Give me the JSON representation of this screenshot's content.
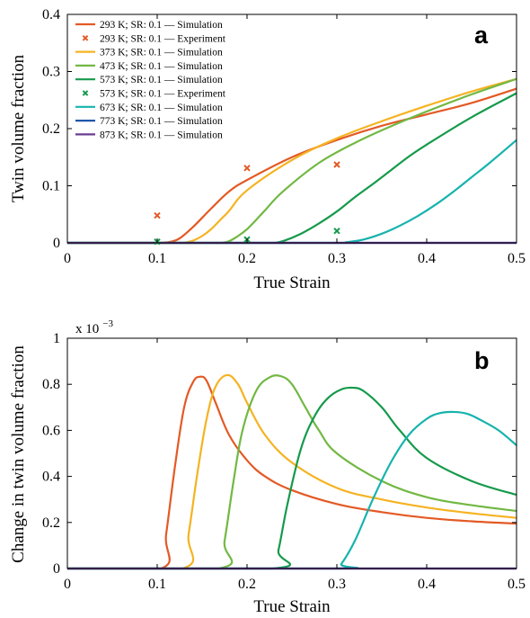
{
  "colors": {
    "293": "#e35a25",
    "373": "#f5b322",
    "473": "#72b843",
    "573": "#159a4b",
    "673": "#16b3ad",
    "773": "#1f57a8",
    "873": "#6a3d93"
  },
  "chart_data": [
    {
      "type": "line",
      "panel_label": "a",
      "xlabel": "True Strain",
      "ylabel": "Twin volume fraction",
      "xlim": [
        0,
        0.5
      ],
      "ylim": [
        0,
        0.4
      ],
      "xticks": [
        "0",
        "0.1",
        "0.2",
        "0.3",
        "0.4",
        "0.5"
      ],
      "yticks": [
        "0",
        "0.1",
        "0.2",
        "0.3",
        "0.4"
      ],
      "legend_position": "top-left",
      "legend": [
        {
          "label": "293 K; SR: 0.1 — Simulation",
          "color_key": "293",
          "marker": "line"
        },
        {
          "label": "293 K; SR: 0.1 — Experiment",
          "color_key": "293",
          "marker": "x"
        },
        {
          "label": "373 K; SR: 0.1 — Simulation",
          "color_key": "373",
          "marker": "line"
        },
        {
          "label": "473 K; SR: 0.1 — Simulation",
          "color_key": "473",
          "marker": "line"
        },
        {
          "label": "573 K; SR: 0.1 — Simulation",
          "color_key": "573",
          "marker": "line"
        },
        {
          "label": "573 K; SR: 0.1 — Experiment",
          "color_key": "573",
          "marker": "x"
        },
        {
          "label": "673 K; SR: 0.1 — Simulation",
          "color_key": "673",
          "marker": "line"
        },
        {
          "label": "773 K; SR: 0.1 — Simulation",
          "color_key": "773",
          "marker": "line"
        },
        {
          "label": "873 K; SR: 0.1 — Simulation",
          "color_key": "873",
          "marker": "line"
        }
      ],
      "series": [
        {
          "name": "293 K; SR: 0.1 — Simulation",
          "color_key": "293",
          "x": [
            0,
            0.1,
            0.105,
            0.115,
            0.125,
            0.14,
            0.16,
            0.18,
            0.2,
            0.25,
            0.3,
            0.35,
            0.4,
            0.45,
            0.5
          ],
          "y": [
            0,
            0,
            0,
            0.002,
            0.008,
            0.028,
            0.06,
            0.09,
            0.11,
            0.15,
            0.18,
            0.205,
            0.225,
            0.245,
            0.27
          ]
        },
        {
          "name": "373 K; SR: 0.1 — Simulation",
          "color_key": "373",
          "x": [
            0,
            0.125,
            0.13,
            0.14,
            0.15,
            0.16,
            0.17,
            0.18,
            0.2,
            0.25,
            0.3,
            0.35,
            0.4,
            0.45,
            0.5
          ],
          "y": [
            0,
            0,
            0,
            0.004,
            0.012,
            0.024,
            0.04,
            0.056,
            0.092,
            0.145,
            0.183,
            0.213,
            0.24,
            0.265,
            0.287
          ]
        },
        {
          "name": "473 K; SR: 0.1 — Simulation",
          "color_key": "473",
          "x": [
            0,
            0.165,
            0.17,
            0.18,
            0.19,
            0.2,
            0.21,
            0.22,
            0.24,
            0.28,
            0.32,
            0.36,
            0.4,
            0.45,
            0.5
          ],
          "y": [
            0,
            0,
            0,
            0.003,
            0.012,
            0.024,
            0.04,
            0.057,
            0.09,
            0.14,
            0.175,
            0.204,
            0.23,
            0.26,
            0.287
          ]
        },
        {
          "name": "573 K; SR: 0.1 — Simulation",
          "color_key": "573",
          "x": [
            0,
            0.225,
            0.23,
            0.24,
            0.26,
            0.28,
            0.3,
            0.32,
            0.34,
            0.36,
            0.38,
            0.4,
            0.45,
            0.5
          ],
          "y": [
            0,
            0,
            0,
            0.003,
            0.016,
            0.034,
            0.055,
            0.08,
            0.103,
            0.127,
            0.151,
            0.172,
            0.22,
            0.262
          ]
        },
        {
          "name": "673 K; SR: 0.1 — Simulation",
          "color_key": "673",
          "x": [
            0,
            0.3,
            0.31,
            0.33,
            0.35,
            0.37,
            0.39,
            0.41,
            0.43,
            0.45,
            0.47,
            0.5
          ],
          "y": [
            0,
            0,
            0.001,
            0.006,
            0.016,
            0.03,
            0.047,
            0.067,
            0.09,
            0.115,
            0.14,
            0.18
          ]
        },
        {
          "name": "773 K; SR: 0.1 — Simulation",
          "color_key": "773",
          "x": [
            0,
            0.5
          ],
          "y": [
            0,
            0
          ]
        },
        {
          "name": "873 K; SR: 0.1 — Simulation",
          "color_key": "873",
          "x": [
            0,
            0.5
          ],
          "y": [
            0,
            0
          ]
        }
      ],
      "experiments": [
        {
          "name": "293 K; SR: 0.1 — Experiment",
          "color_key": "293",
          "x": [
            0.1,
            0.2,
            0.3
          ],
          "y": [
            0.048,
            0.131,
            0.137
          ]
        },
        {
          "name": "573 K; SR: 0.1 — Experiment",
          "color_key": "573",
          "x": [
            0.1,
            0.2,
            0.3
          ],
          "y": [
            0.002,
            0.006,
            0.021
          ]
        }
      ]
    },
    {
      "type": "line",
      "panel_label": "b",
      "xlabel": "True Strain",
      "ylabel": "Change in twin volume fraction",
      "y_exponent_base": "x 10",
      "y_exponent_power": "−3",
      "xlim": [
        0,
        0.5
      ],
      "ylim": [
        0,
        1
      ],
      "xticks": [
        "0",
        "0.1",
        "0.2",
        "0.3",
        "0.4",
        "0.5"
      ],
      "yticks": [
        "0",
        "0.2",
        "0.4",
        "0.6",
        "0.8",
        "1"
      ],
      "series": [
        {
          "name": "293 K",
          "color_key": "293",
          "x": [
            0,
            0.104,
            0.11,
            0.12,
            0.13,
            0.14,
            0.148,
            0.155,
            0.165,
            0.18,
            0.2,
            0.22,
            0.25,
            0.3,
            0.35,
            0.4,
            0.45,
            0.5
          ],
          "y": [
            0,
            0,
            0.15,
            0.45,
            0.7,
            0.81,
            0.833,
            0.815,
            0.72,
            0.58,
            0.47,
            0.4,
            0.34,
            0.28,
            0.245,
            0.22,
            0.205,
            0.195
          ]
        },
        {
          "name": "373 K",
          "color_key": "373",
          "x": [
            0,
            0.128,
            0.135,
            0.145,
            0.155,
            0.165,
            0.178,
            0.19,
            0.2,
            0.22,
            0.25,
            0.3,
            0.35,
            0.4,
            0.45,
            0.5
          ],
          "y": [
            0,
            0,
            0.15,
            0.42,
            0.65,
            0.79,
            0.84,
            0.8,
            0.72,
            0.58,
            0.46,
            0.35,
            0.3,
            0.265,
            0.24,
            0.22
          ]
        },
        {
          "name": "473 K",
          "color_key": "473",
          "x": [
            0,
            0.168,
            0.175,
            0.185,
            0.195,
            0.21,
            0.225,
            0.238,
            0.25,
            0.265,
            0.28,
            0.3,
            0.35,
            0.4,
            0.45,
            0.5
          ],
          "y": [
            0,
            0,
            0.12,
            0.38,
            0.6,
            0.77,
            0.83,
            0.835,
            0.8,
            0.7,
            0.6,
            0.5,
            0.38,
            0.31,
            0.275,
            0.25
          ]
        },
        {
          "name": "573 K",
          "color_key": "573",
          "x": [
            0,
            0.228,
            0.235,
            0.245,
            0.26,
            0.275,
            0.29,
            0.305,
            0.318,
            0.33,
            0.35,
            0.37,
            0.4,
            0.45,
            0.5
          ],
          "y": [
            0,
            0,
            0.08,
            0.28,
            0.52,
            0.66,
            0.74,
            0.778,
            0.785,
            0.77,
            0.7,
            0.6,
            0.48,
            0.38,
            0.32
          ]
        },
        {
          "name": "673 K",
          "color_key": "673",
          "x": [
            0,
            0.298,
            0.305,
            0.32,
            0.34,
            0.36,
            0.38,
            0.4,
            0.415,
            0.43,
            0.445,
            0.46,
            0.48,
            0.5
          ],
          "y": [
            0,
            0,
            0.02,
            0.12,
            0.3,
            0.46,
            0.58,
            0.65,
            0.675,
            0.68,
            0.672,
            0.645,
            0.6,
            0.535
          ]
        },
        {
          "name": "773 K",
          "color_key": "773",
          "x": [
            0,
            0.5
          ],
          "y": [
            0,
            0
          ]
        },
        {
          "name": "873 K",
          "color_key": "873",
          "x": [
            0,
            0.5
          ],
          "y": [
            0,
            0
          ]
        }
      ]
    }
  ]
}
